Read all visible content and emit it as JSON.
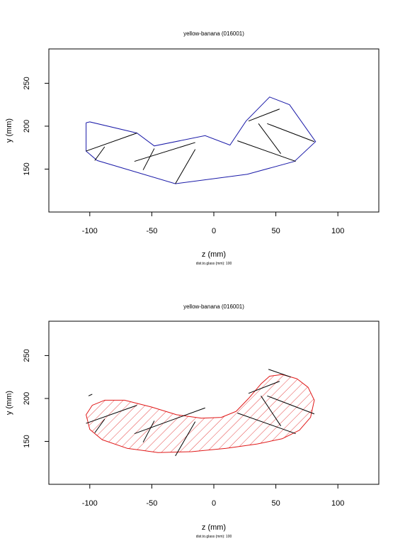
{
  "chart_data": [
    {
      "type": "line",
      "title": "yellow-banana (016001)",
      "xlabel": "z (mm)",
      "ylabel": "y (mm)",
      "subnote": "dist.to.glass (mm): 100",
      "xlim": [
        -133,
        133
      ],
      "ylim": [
        100,
        290
      ],
      "xticks": [
        -100,
        -50,
        0,
        50,
        100
      ],
      "yticks": [
        150,
        200,
        250
      ],
      "outline_color": "#1a1aa8",
      "outline": [
        [
          -103,
          204
        ],
        [
          -100,
          205
        ],
        [
          -62,
          192
        ],
        [
          -48,
          177
        ],
        [
          -7,
          189
        ],
        [
          13,
          178
        ],
        [
          26,
          206
        ],
        [
          45,
          234
        ],
        [
          61,
          225
        ],
        [
          82,
          182
        ],
        [
          65,
          159
        ],
        [
          27,
          144
        ],
        [
          -31,
          133
        ],
        [
          -94,
          160
        ],
        [
          -103,
          171
        ],
        [
          -103,
          204
        ]
      ],
      "segments": [
        [
          [
            -103,
            171
          ],
          [
            -62,
            192
          ]
        ],
        [
          [
            -96,
            160
          ],
          [
            -88,
            176
          ]
        ],
        [
          [
            -64,
            159
          ],
          [
            -15,
            181
          ]
        ],
        [
          [
            -57,
            149
          ],
          [
            -48,
            174
          ]
        ],
        [
          [
            -31,
            133
          ],
          [
            -15,
            173
          ]
        ],
        [
          [
            19,
            183
          ],
          [
            66,
            159
          ]
        ],
        [
          [
            28,
            206
          ],
          [
            53,
            220
          ]
        ],
        [
          [
            36,
            203
          ],
          [
            54,
            168
          ]
        ],
        [
          [
            43,
            203
          ],
          [
            81,
            182
          ]
        ]
      ]
    },
    {
      "type": "area",
      "title": "yellow-banana (016001)",
      "xlabel": "z (mm)",
      "ylabel": "y (mm)",
      "subnote": "dist.to.glass (mm): 100",
      "xlim": [
        -133,
        133
      ],
      "ylim": [
        100,
        290
      ],
      "xticks": [
        -100,
        -50,
        0,
        50,
        100
      ],
      "yticks": [
        150,
        200,
        250
      ],
      "outline_color": "#e01818",
      "hatch_color": "#e01818",
      "outline": [
        [
          -103,
          181
        ],
        [
          -98,
          192
        ],
        [
          -88,
          198
        ],
        [
          -72,
          198
        ],
        [
          -50,
          190
        ],
        [
          -30,
          181
        ],
        [
          -10,
          177
        ],
        [
          6,
          178
        ],
        [
          18,
          185
        ],
        [
          28,
          200
        ],
        [
          38,
          217
        ],
        [
          45,
          226
        ],
        [
          55,
          228
        ],
        [
          67,
          223
        ],
        [
          76,
          213
        ],
        [
          81,
          198
        ],
        [
          78,
          178
        ],
        [
          69,
          163
        ],
        [
          55,
          153
        ],
        [
          35,
          147
        ],
        [
          10,
          142
        ],
        [
          -18,
          138
        ],
        [
          -45,
          137
        ],
        [
          -70,
          142
        ],
        [
          -90,
          152
        ],
        [
          -100,
          164
        ],
        [
          -103,
          181
        ]
      ],
      "segments": [
        [
          [
            -103,
            171
          ],
          [
            -62,
            192
          ]
        ],
        [
          [
            -96,
            160
          ],
          [
            -88,
            176
          ]
        ],
        [
          [
            -64,
            159
          ],
          [
            -7,
            189
          ]
        ],
        [
          [
            -57,
            149
          ],
          [
            -48,
            174
          ]
        ],
        [
          [
            -31,
            133
          ],
          [
            -15,
            173
          ]
        ],
        [
          [
            19,
            183
          ],
          [
            66,
            159
          ]
        ],
        [
          [
            28,
            206
          ],
          [
            53,
            220
          ]
        ],
        [
          [
            38,
            203
          ],
          [
            54,
            168
          ]
        ],
        [
          [
            43,
            203
          ],
          [
            81,
            182
          ]
        ],
        [
          [
            44,
            234
          ],
          [
            62,
            225
          ]
        ],
        [
          [
            -101,
            203
          ],
          [
            -98,
            205
          ]
        ]
      ]
    }
  ]
}
